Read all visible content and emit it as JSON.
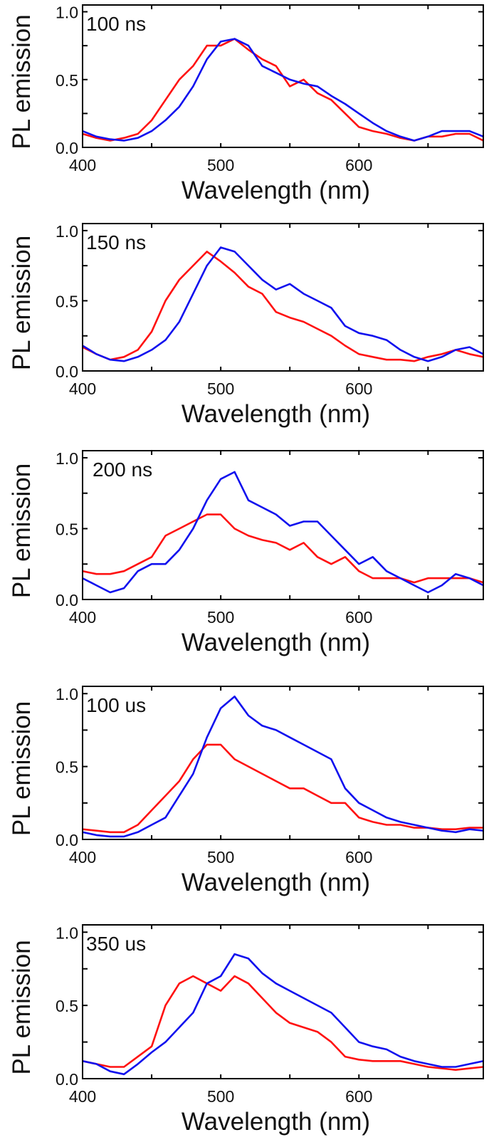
{
  "colors": {
    "series_red": "#ff1010",
    "series_blue": "#1010ee",
    "axis": "#000000"
  },
  "chart_data": [
    {
      "type": "line",
      "panel_label": "100 ns",
      "xlabel": "Wavelength (nm)",
      "ylabel": "PL emission",
      "xlim": [
        400,
        690
      ],
      "ylim": [
        0,
        1.05
      ],
      "xticks": [
        400,
        500,
        600
      ],
      "yticks": [
        "0.0",
        "0.5",
        "1.0"
      ],
      "grid": false,
      "x": [
        400,
        410,
        420,
        430,
        440,
        450,
        460,
        470,
        480,
        490,
        500,
        510,
        520,
        530,
        540,
        550,
        560,
        570,
        580,
        590,
        600,
        610,
        620,
        630,
        640,
        650,
        660,
        670,
        680,
        690
      ],
      "series": [
        {
          "name": "red",
          "values": [
            0.1,
            0.07,
            0.05,
            0.07,
            0.1,
            0.2,
            0.35,
            0.5,
            0.6,
            0.75,
            0.75,
            0.8,
            0.72,
            0.65,
            0.6,
            0.45,
            0.5,
            0.4,
            0.35,
            0.25,
            0.15,
            0.12,
            0.1,
            0.07,
            0.05,
            0.08,
            0.08,
            0.1,
            0.1,
            0.05
          ]
        },
        {
          "name": "blue",
          "values": [
            0.12,
            0.08,
            0.06,
            0.05,
            0.07,
            0.12,
            0.2,
            0.3,
            0.45,
            0.65,
            0.78,
            0.8,
            0.75,
            0.6,
            0.55,
            0.5,
            0.47,
            0.45,
            0.38,
            0.32,
            0.25,
            0.18,
            0.12,
            0.08,
            0.05,
            0.08,
            0.12,
            0.12,
            0.12,
            0.08
          ]
        }
      ]
    },
    {
      "type": "line",
      "panel_label": "150 ns",
      "xlabel": "Wavelength (nm)",
      "ylabel": "PL emission",
      "xlim": [
        400,
        690
      ],
      "ylim": [
        0,
        1.05
      ],
      "xticks": [
        400,
        500,
        600
      ],
      "yticks": [
        "0.0",
        "0.5",
        "1.0"
      ],
      "grid": false,
      "x": [
        400,
        410,
        420,
        430,
        440,
        450,
        460,
        470,
        480,
        490,
        500,
        510,
        520,
        530,
        540,
        550,
        560,
        570,
        580,
        590,
        600,
        610,
        620,
        630,
        640,
        650,
        660,
        670,
        680,
        690
      ],
      "series": [
        {
          "name": "red",
          "values": [
            0.17,
            0.12,
            0.08,
            0.1,
            0.15,
            0.28,
            0.5,
            0.65,
            0.75,
            0.85,
            0.78,
            0.7,
            0.6,
            0.55,
            0.42,
            0.38,
            0.35,
            0.3,
            0.25,
            0.18,
            0.12,
            0.1,
            0.08,
            0.08,
            0.07,
            0.1,
            0.12,
            0.15,
            0.12,
            0.1
          ]
        },
        {
          "name": "blue",
          "values": [
            0.18,
            0.12,
            0.08,
            0.07,
            0.1,
            0.15,
            0.22,
            0.35,
            0.55,
            0.75,
            0.88,
            0.85,
            0.75,
            0.65,
            0.58,
            0.62,
            0.55,
            0.5,
            0.45,
            0.32,
            0.27,
            0.25,
            0.22,
            0.15,
            0.1,
            0.07,
            0.1,
            0.15,
            0.17,
            0.12
          ]
        }
      ]
    },
    {
      "type": "line",
      "panel_label": "200 ns",
      "xlabel": "Wavelength (nm)",
      "ylabel": "PL emission",
      "xlim": [
        400,
        690
      ],
      "ylim": [
        0,
        1.05
      ],
      "xticks": [
        400,
        500,
        600
      ],
      "yticks": [
        "0.0",
        "0.5",
        "1.0"
      ],
      "grid": false,
      "x": [
        400,
        410,
        420,
        430,
        440,
        450,
        460,
        470,
        480,
        490,
        500,
        510,
        520,
        530,
        540,
        550,
        560,
        570,
        580,
        590,
        600,
        610,
        620,
        630,
        640,
        650,
        660,
        670,
        680,
        690
      ],
      "series": [
        {
          "name": "red",
          "values": [
            0.2,
            0.18,
            0.18,
            0.2,
            0.25,
            0.3,
            0.45,
            0.5,
            0.55,
            0.6,
            0.6,
            0.5,
            0.45,
            0.42,
            0.4,
            0.35,
            0.4,
            0.3,
            0.25,
            0.3,
            0.2,
            0.15,
            0.15,
            0.15,
            0.12,
            0.15,
            0.15,
            0.15,
            0.15,
            0.12
          ]
        },
        {
          "name": "blue",
          "values": [
            0.15,
            0.1,
            0.05,
            0.08,
            0.2,
            0.25,
            0.25,
            0.35,
            0.5,
            0.7,
            0.85,
            0.9,
            0.7,
            0.65,
            0.6,
            0.52,
            0.55,
            0.55,
            0.45,
            0.35,
            0.25,
            0.3,
            0.2,
            0.15,
            0.1,
            0.05,
            0.1,
            0.18,
            0.15,
            0.1
          ]
        }
      ]
    },
    {
      "type": "line",
      "panel_label": "100 us",
      "xlabel": "Wavelength (nm)",
      "ylabel": "PL emission",
      "xlim": [
        400,
        690
      ],
      "ylim": [
        0,
        1.05
      ],
      "xticks": [
        400,
        500,
        600
      ],
      "yticks": [
        "0.0",
        "0.5",
        "1.0"
      ],
      "grid": false,
      "x": [
        400,
        410,
        420,
        430,
        440,
        450,
        460,
        470,
        480,
        490,
        500,
        510,
        520,
        530,
        540,
        550,
        560,
        570,
        580,
        590,
        600,
        610,
        620,
        630,
        640,
        650,
        660,
        670,
        680,
        690
      ],
      "series": [
        {
          "name": "red",
          "values": [
            0.07,
            0.06,
            0.05,
            0.05,
            0.1,
            0.2,
            0.3,
            0.4,
            0.55,
            0.65,
            0.65,
            0.55,
            0.5,
            0.45,
            0.4,
            0.35,
            0.35,
            0.3,
            0.25,
            0.25,
            0.15,
            0.12,
            0.1,
            0.1,
            0.08,
            0.08,
            0.07,
            0.07,
            0.08,
            0.08
          ]
        },
        {
          "name": "blue",
          "values": [
            0.05,
            0.03,
            0.02,
            0.02,
            0.05,
            0.1,
            0.15,
            0.3,
            0.45,
            0.7,
            0.9,
            0.98,
            0.85,
            0.78,
            0.75,
            0.7,
            0.65,
            0.6,
            0.55,
            0.35,
            0.25,
            0.2,
            0.15,
            0.12,
            0.1,
            0.08,
            0.06,
            0.05,
            0.07,
            0.06
          ]
        }
      ]
    },
    {
      "type": "line",
      "panel_label": "350 us",
      "xlabel": "Wavelength (nm)",
      "ylabel": "PL emission",
      "xlim": [
        400,
        690
      ],
      "ylim": [
        0,
        1.05
      ],
      "xticks": [
        400,
        500,
        600
      ],
      "yticks": [
        "0.0",
        "0.5",
        "1.0"
      ],
      "grid": false,
      "x": [
        400,
        410,
        420,
        430,
        440,
        450,
        460,
        470,
        480,
        490,
        500,
        510,
        520,
        530,
        540,
        550,
        560,
        570,
        580,
        590,
        600,
        610,
        620,
        630,
        640,
        650,
        660,
        670,
        680,
        690
      ],
      "series": [
        {
          "name": "red",
          "values": [
            0.12,
            0.1,
            0.08,
            0.08,
            0.15,
            0.22,
            0.5,
            0.65,
            0.7,
            0.65,
            0.6,
            0.7,
            0.65,
            0.55,
            0.45,
            0.38,
            0.35,
            0.32,
            0.25,
            0.15,
            0.13,
            0.12,
            0.12,
            0.12,
            0.1,
            0.08,
            0.07,
            0.06,
            0.07,
            0.08
          ]
        },
        {
          "name": "blue",
          "values": [
            0.12,
            0.1,
            0.05,
            0.03,
            0.1,
            0.18,
            0.25,
            0.35,
            0.45,
            0.65,
            0.7,
            0.85,
            0.82,
            0.72,
            0.65,
            0.6,
            0.55,
            0.5,
            0.45,
            0.35,
            0.25,
            0.22,
            0.2,
            0.15,
            0.12,
            0.1,
            0.08,
            0.08,
            0.1,
            0.12
          ]
        }
      ]
    }
  ]
}
